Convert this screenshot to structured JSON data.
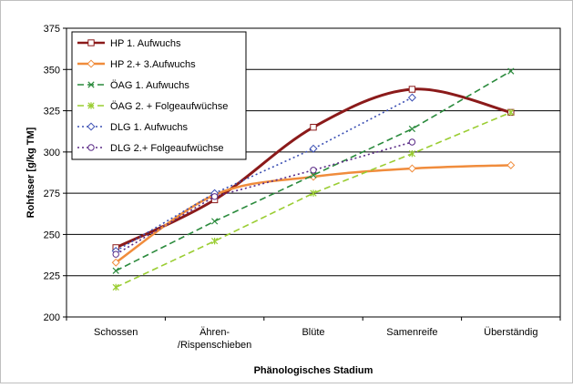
{
  "chart_data": {
    "type": "line",
    "title": "",
    "xlabel": "Phänologisches Stadium",
    "ylabel": "Rohfaser [g/kg TM]",
    "ylim": [
      200,
      375
    ],
    "yticks": [
      200,
      225,
      250,
      275,
      300,
      325,
      350,
      375
    ],
    "grid": true,
    "legend_position": "top-left",
    "categories": [
      "Schossen",
      "Ähren- /Rispenschieben",
      "Blüte",
      "Samenreife",
      "Überständig"
    ],
    "category_lines": [
      [
        "Schossen"
      ],
      [
        "Ähren-",
        "/Rispenschieben"
      ],
      [
        "Blüte"
      ],
      [
        "Samenreife"
      ],
      [
        "Überständig"
      ]
    ],
    "series": [
      {
        "name": "HP 1. Aufwuchs",
        "values": [
          242,
          271,
          315,
          338,
          324
        ],
        "color": "#8b1a1a",
        "marker": "square",
        "line": "solid",
        "smooth": true,
        "width": 3
      },
      {
        "name": "HP 2.+ 3.Aufwuchs",
        "values": [
          233,
          274,
          285,
          290,
          292
        ],
        "color": "#f08c3c",
        "marker": "diamond",
        "line": "solid",
        "smooth": true,
        "width": 2.5
      },
      {
        "name": "ÖAG 1. Aufwuchs",
        "values": [
          228,
          258,
          286,
          314,
          349
        ],
        "color": "#2a8a3c",
        "marker": "x",
        "line": "dashed",
        "smooth": false,
        "width": 1.6
      },
      {
        "name": "ÖAG 2. + Folgeaufwüchse",
        "values": [
          218,
          246,
          275,
          299,
          324
        ],
        "color": "#9acd32",
        "marker": "star",
        "line": "dashed",
        "smooth": false,
        "width": 1.6
      },
      {
        "name": "DLG 1. Aufwuchs",
        "values": [
          240,
          275,
          302,
          333,
          null
        ],
        "color": "#3c50b4",
        "marker": "diamond",
        "line": "dotted",
        "smooth": false,
        "width": 1.6
      },
      {
        "name": "DLG 2.+ Folgeaufwüchse",
        "values": [
          238,
          273,
          289,
          306,
          null
        ],
        "color": "#5a2a86",
        "marker": "circle",
        "line": "dotted",
        "smooth": false,
        "width": 1.6
      }
    ]
  }
}
